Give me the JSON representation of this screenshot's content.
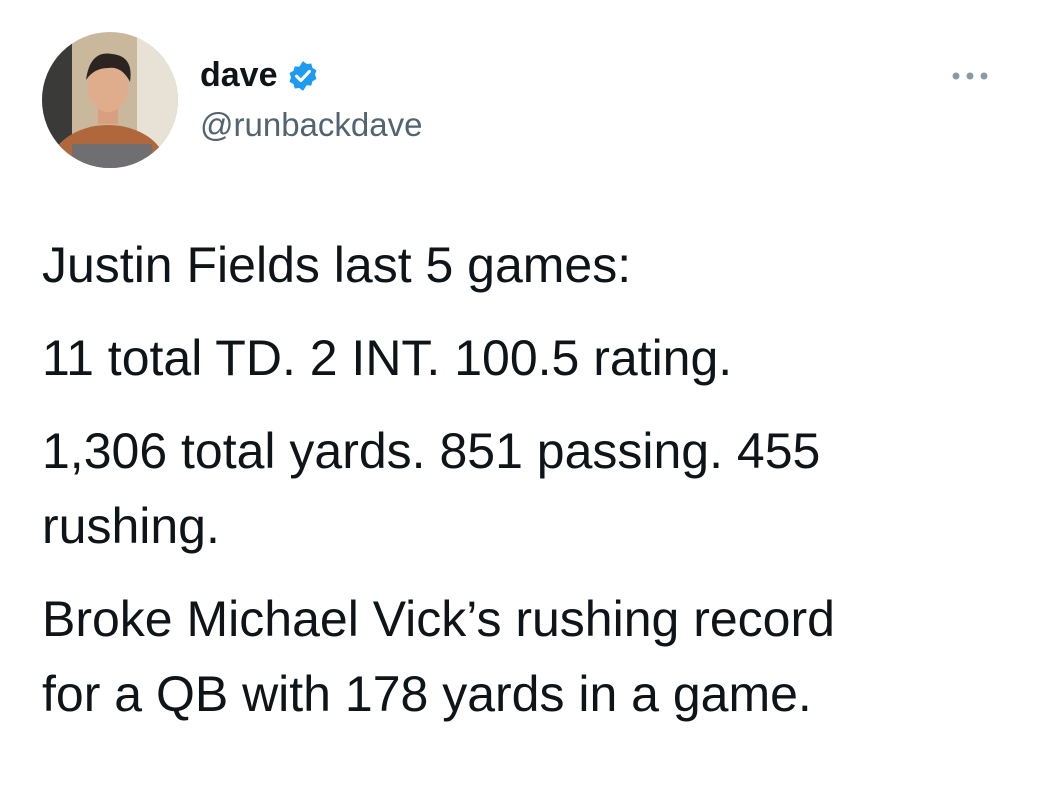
{
  "user": {
    "name": "dave",
    "handle": "@runbackdave"
  },
  "tweet": {
    "paragraphs": [
      "Justin Fields last 5 games:",
      "11 total TD. 2 INT. 100.5 rating.",
      "1,306 total yards. 851 passing. 455 rushing.",
      "Broke Michael Vick’s rushing record for a QB with 178 yards in a game."
    ]
  }
}
